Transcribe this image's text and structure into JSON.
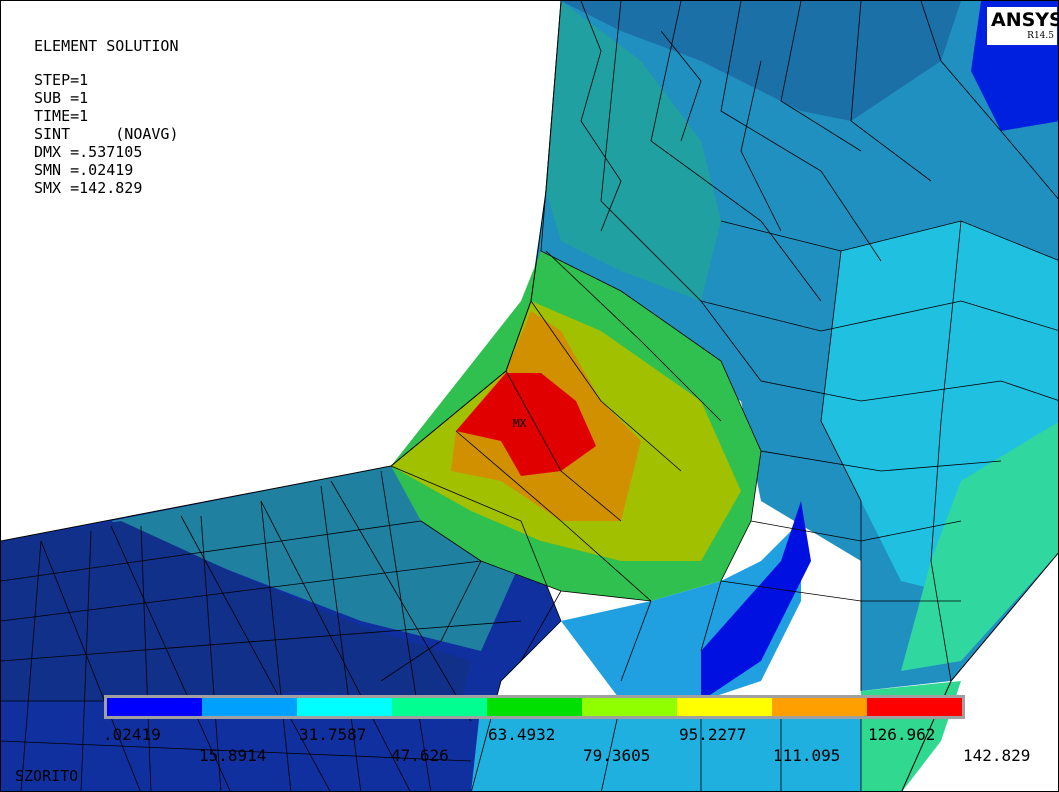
{
  "title": "ELEMENT SOLUTION",
  "info_lines": [
    "STEP=1",
    "SUB =1",
    "TIME=1",
    "SINT     (NOAVG)",
    "DMX =.537105",
    "SMN =.02419",
    "SMX =142.829"
  ],
  "logo": {
    "text": "ANSYS",
    "version": "R14.5"
  },
  "mx_marker": "MX",
  "footer_label": "SZORITO",
  "legend": {
    "colors": [
      "#0000ff",
      "#00a0ff",
      "#00ffff",
      "#00ff90",
      "#00e000",
      "#90ff00",
      "#ffff00",
      "#ffa000",
      "#ff0000"
    ],
    "labels_top": [
      ".02419",
      "31.7587",
      "63.4932",
      "95.2277",
      "126.962"
    ],
    "labels_bottom": [
      "15.8914",
      "47.626",
      "79.3605",
      "111.095",
      "142.829"
    ]
  },
  "colors": {
    "background": "#ffffff",
    "mesh_line": "#000000"
  }
}
